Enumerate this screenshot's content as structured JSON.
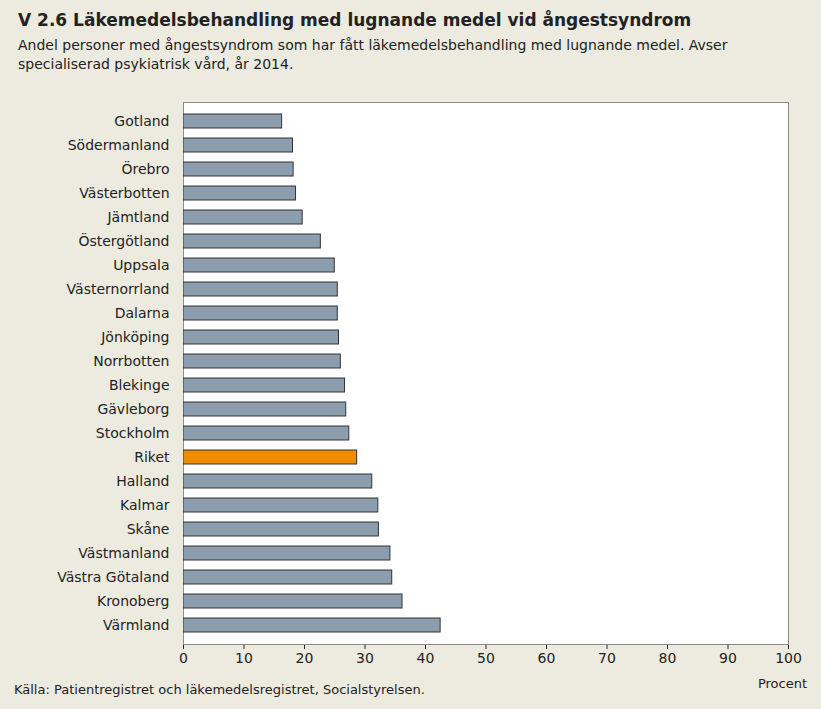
{
  "chart_data": {
    "type": "bar",
    "orientation": "horizontal",
    "title": "V 2.6 Läkemedelsbehandling med lugnande medel vid ångestsyndrom",
    "subtitle": "Andel personer med  ångestsyndrom som har fått läkemedelsbehandling med lugnande medel. Avser specialiserad psykiatrisk vård, år 2014.",
    "source": "Källa: Patientregistret och läkemedelsregistret, Socialstyrelsen.",
    "xlabel": "Procent",
    "categories": [
      "Gotland",
      "Södermanland",
      "Örebro",
      "Västerbotten",
      "Jämtland",
      "Östergötland",
      "Uppsala",
      "Västernorrland",
      "Dalarna",
      "Jönköping",
      "Norrbotten",
      "Blekinge",
      "Gävleborg",
      "Stockholm",
      "Riket",
      "Halland",
      "Kalmar",
      "Skåne",
      "Västmanland",
      "Västra Götaland",
      "Kronoberg",
      "Värmland"
    ],
    "values": [
      16.3,
      18.1,
      18.2,
      18.6,
      19.7,
      22.7,
      25.0,
      25.5,
      25.5,
      25.7,
      26.0,
      26.7,
      26.9,
      27.4,
      28.7,
      31.2,
      32.2,
      32.3,
      34.2,
      34.5,
      36.2,
      42.5
    ],
    "colors": [
      "#8C9EAE",
      "#8C9EAE",
      "#8C9EAE",
      "#8C9EAE",
      "#8C9EAE",
      "#8C9EAE",
      "#8C9EAE",
      "#8C9EAE",
      "#8C9EAE",
      "#8C9EAE",
      "#8C9EAE",
      "#8C9EAE",
      "#8C9EAE",
      "#8C9EAE",
      "#F08C00",
      "#8C9EAE",
      "#8C9EAE",
      "#8C9EAE",
      "#8C9EAE",
      "#8C9EAE",
      "#8C9EAE",
      "#8C9EAE"
    ],
    "xlim": [
      0,
      100
    ],
    "xticks": [
      0,
      10,
      20,
      30,
      40,
      50,
      60,
      70,
      80,
      90,
      100
    ],
    "grid": false
  }
}
